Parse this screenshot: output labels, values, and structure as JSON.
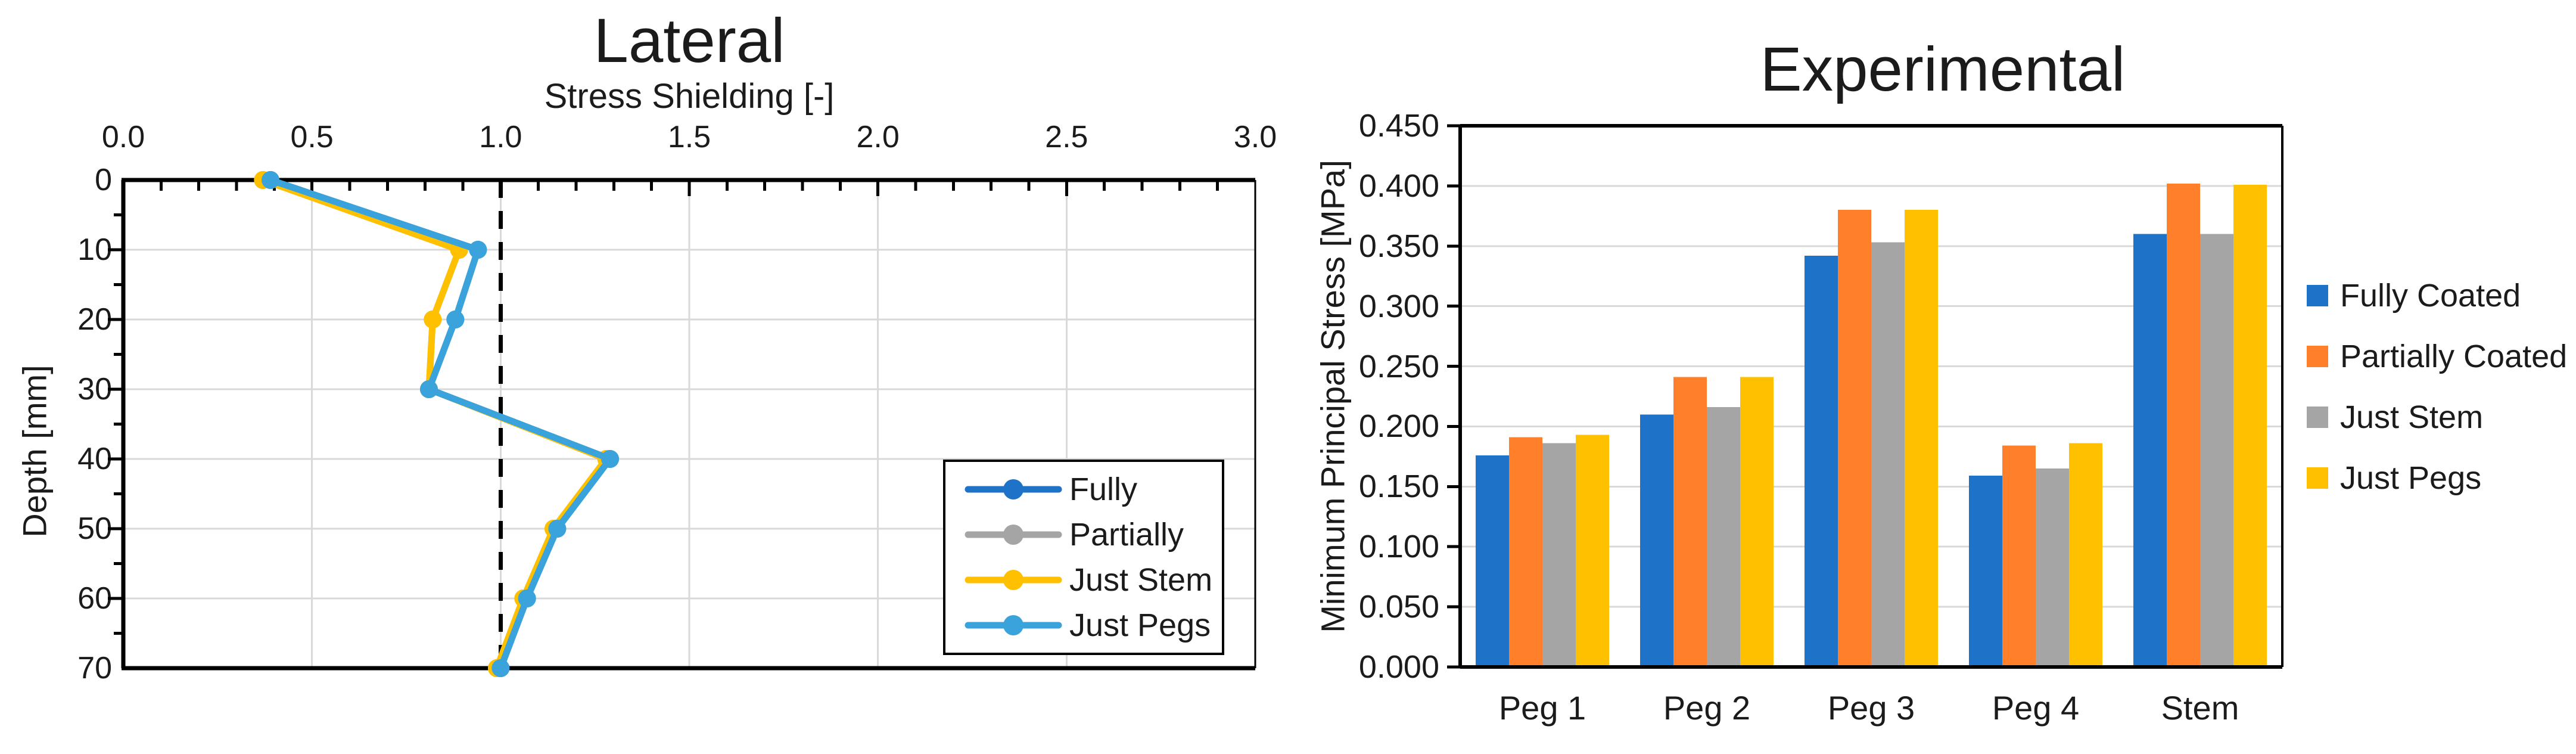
{
  "figure": {
    "background": "#ffffff",
    "description_colors": {
      "blue": "#1E73C8",
      "orange": "#FF7F2B",
      "gray": "#A5A5A5",
      "yellow": "#FFC000",
      "cyan": "#3AA3DC",
      "gridline": "#D9D9D9",
      "axis": "#000000"
    }
  },
  "chart_data": [
    {
      "type": "line",
      "title": "Lateral",
      "xlabel": "Stress Shielding [-]",
      "ylabel": "Depth [mm]",
      "xlim": [
        0,
        3
      ],
      "x_major_step": 0.5,
      "x_minor_step": 0.1,
      "x_ticks": [
        "0.0",
        "0.5",
        "1.0",
        "1.5",
        "2.0",
        "2.5",
        "3.0"
      ],
      "ylim": [
        0,
        70
      ],
      "y_major_step": 10,
      "y_minor_step": 5,
      "y_ticks": [
        "0",
        "10",
        "20",
        "30",
        "40",
        "50",
        "60",
        "70"
      ],
      "y_axis_inverted": true,
      "grid": true,
      "reference_line_x": 1.0,
      "reference_line_style": "dashed-black",
      "legend_position": "inside-bottom-right",
      "depths": [
        0,
        10,
        20,
        30,
        40,
        50,
        60,
        70
      ],
      "series": [
        {
          "name": "Fully",
          "color": "#1E73C8",
          "values": [
            0.39,
            0.94,
            0.88,
            0.81,
            1.29,
            1.15,
            1.07,
            1.0
          ]
        },
        {
          "name": "Partially",
          "color": "#A5A5A5",
          "values": [
            0.37,
            0.89,
            0.82,
            0.81,
            1.28,
            1.14,
            1.06,
            0.99
          ]
        },
        {
          "name": "Just Stem",
          "color": "#FFC000",
          "values": [
            0.37,
            0.89,
            0.82,
            0.81,
            1.28,
            1.14,
            1.06,
            0.99
          ]
        },
        {
          "name": "Just Pegs",
          "color": "#3AA3DC",
          "values": [
            0.39,
            0.94,
            0.88,
            0.81,
            1.29,
            1.15,
            1.07,
            1.0
          ]
        }
      ]
    },
    {
      "type": "bar",
      "title": "Experimental",
      "xlabel": "",
      "ylabel": "Minimum Principal Stress [MPa]",
      "ylim": [
        0,
        0.45
      ],
      "y_step": 0.05,
      "y_ticks": [
        "0.000",
        "0.050",
        "0.100",
        "0.150",
        "0.200",
        "0.250",
        "0.300",
        "0.350",
        "0.400",
        "0.450"
      ],
      "grid": true,
      "legend_position": "outside-right",
      "categories": [
        "Peg 1",
        "Peg 2",
        "Peg 3",
        "Peg 4",
        "Stem"
      ],
      "series": [
        {
          "name": "Fully Coated",
          "color": "#1E73C8",
          "values": [
            0.176,
            0.21,
            0.342,
            0.159,
            0.36
          ]
        },
        {
          "name": "Partially Coated",
          "color": "#FF7F2B",
          "values": [
            0.191,
            0.241,
            0.38,
            0.184,
            0.402
          ]
        },
        {
          "name": "Just Stem",
          "color": "#A5A5A5",
          "values": [
            0.186,
            0.216,
            0.353,
            0.165,
            0.36
          ]
        },
        {
          "name": "Just Pegs",
          "color": "#FFC000",
          "values": [
            0.193,
            0.241,
            0.38,
            0.186,
            0.401
          ]
        }
      ]
    }
  ]
}
